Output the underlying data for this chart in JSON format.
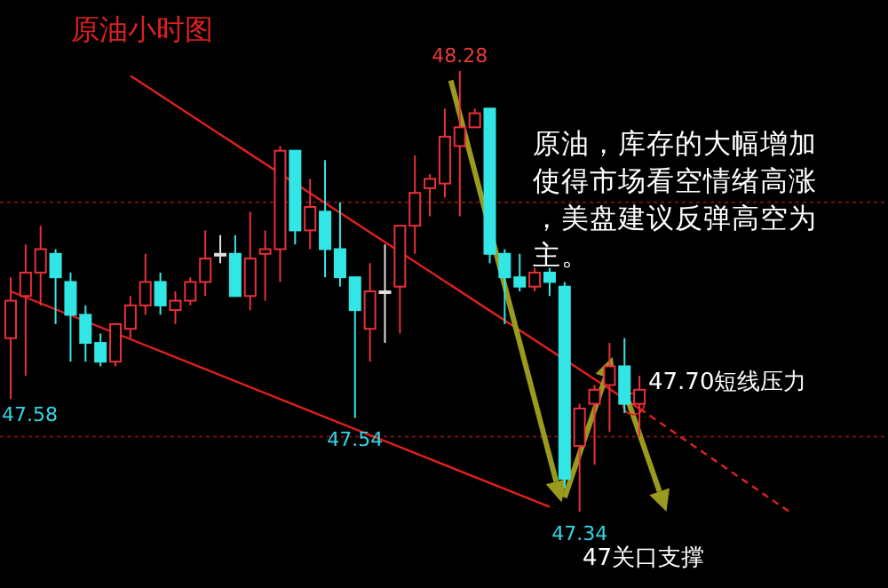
{
  "chart_data": {
    "type": "candlestick",
    "title": "原油小时图",
    "categories": [
      null,
      null,
      null,
      null,
      null,
      null,
      null,
      null,
      null,
      null,
      null,
      null,
      null,
      null,
      null,
      null,
      null,
      null,
      null,
      null,
      null,
      null,
      null,
      null,
      null,
      null,
      null,
      null,
      null,
      null,
      null,
      null,
      null,
      null,
      null,
      null,
      null,
      null,
      null,
      null,
      null,
      null,
      null,
      null,
      null,
      null,
      null,
      null,
      null,
      null,
      null,
      null,
      null
    ],
    "ohlc": [
      [
        47.71,
        47.84,
        47.58,
        47.79
      ],
      [
        47.8,
        47.91,
        47.63,
        47.85
      ],
      [
        47.85,
        47.95,
        47.78,
        47.9
      ],
      [
        47.89,
        47.9,
        47.74,
        47.84
      ],
      [
        47.83,
        47.85,
        47.66,
        47.76
      ],
      [
        47.76,
        47.78,
        47.66,
        47.7
      ],
      [
        47.7,
        47.72,
        47.65,
        47.66
      ],
      [
        47.66,
        47.74,
        47.65,
        47.74
      ],
      [
        47.73,
        47.8,
        47.71,
        47.78
      ],
      [
        47.78,
        47.89,
        47.76,
        47.83
      ],
      [
        47.83,
        47.85,
        47.76,
        47.78
      ],
      [
        47.77,
        47.81,
        47.74,
        47.79
      ],
      [
        47.79,
        47.84,
        47.78,
        47.83
      ],
      [
        47.83,
        47.94,
        47.8,
        47.88
      ],
      [
        47.89,
        47.93,
        47.87,
        47.89
      ],
      [
        47.89,
        47.93,
        47.8,
        47.8
      ],
      [
        47.8,
        47.98,
        47.77,
        47.88
      ],
      [
        47.89,
        47.94,
        47.79,
        47.9
      ],
      [
        47.9,
        48.12,
        47.83,
        48.11
      ],
      [
        48.11,
        48.11,
        47.91,
        47.94
      ],
      [
        47.94,
        48.05,
        47.9,
        47.99
      ],
      [
        47.98,
        48.09,
        47.84,
        47.9
      ],
      [
        47.9,
        48.0,
        47.82,
        47.84
      ],
      [
        47.84,
        47.84,
        47.54,
        47.77
      ],
      [
        47.73,
        47.87,
        47.66,
        47.81
      ],
      [
        47.81,
        47.91,
        47.7,
        47.81
      ],
      [
        47.82,
        47.95,
        47.72,
        47.95
      ],
      [
        47.95,
        48.1,
        47.89,
        48.02
      ],
      [
        48.03,
        48.06,
        47.97,
        48.05
      ],
      [
        48.04,
        48.2,
        48.01,
        48.14
      ],
      [
        48.12,
        48.28,
        47.97,
        48.16
      ],
      [
        48.16,
        48.2,
        48.16,
        48.19
      ],
      [
        48.2,
        48.2,
        47.87,
        47.89
      ],
      [
        47.89,
        47.9,
        47.74,
        47.84
      ],
      [
        47.84,
        47.89,
        47.81,
        47.82
      ],
      [
        47.82,
        47.86,
        47.81,
        47.85
      ],
      [
        47.85,
        47.86,
        47.8,
        47.83
      ],
      [
        47.82,
        47.83,
        47.39,
        47.41
      ],
      [
        47.48,
        47.57,
        47.34,
        47.56
      ],
      [
        47.57,
        47.61,
        47.44,
        47.6
      ],
      [
        47.61,
        47.7,
        47.51,
        47.65
      ],
      [
        47.65,
        47.71,
        47.55,
        47.57
      ],
      [
        47.57,
        47.63,
        47.5,
        47.6
      ],
      null,
      null,
      null,
      null,
      null,
      null,
      null,
      null,
      null,
      null
    ],
    "colors": [
      "#e8303a",
      "#e8303a",
      "#e8303a",
      "#33e6e6",
      "#33e6e6",
      "#33e6e6",
      "#33e6e6",
      "#e8303a",
      "#e8303a",
      "#e8303a",
      "#33e6e6",
      "#e8303a",
      "#e8303a",
      "#e8303a",
      "#e0e0e0",
      "#33e6e6",
      "#e8303a",
      "#e8303a",
      "#e8303a",
      "#33e6e6",
      "#e8303a",
      "#33e6e6",
      "#33e6e6",
      "#33e6e6",
      "#e8303a",
      "#e0e0e0",
      "#e8303a",
      "#e8303a",
      "#e8303a",
      "#e8303a",
      "#e8303a",
      "#e8303a",
      "#33e6e6",
      "#33e6e6",
      "#33e6e6",
      "#e8303a",
      "#33e6e6",
      "#33e6e6",
      "#e8303a",
      "#e8303a",
      "#e8303a",
      "#33e6e6",
      "#e8303a",
      null,
      null,
      null,
      null,
      null,
      null,
      null,
      null,
      null,
      null
    ],
    "series": [
      {
        "type": "line",
        "color": "#e02020",
        "line_style": "solid",
        "values": [
          47.81,
          null,
          null,
          null,
          null,
          null,
          null,
          null,
          null,
          null,
          null,
          null,
          null,
          null,
          null,
          null,
          null,
          null,
          null,
          null,
          null,
          null,
          null,
          null,
          null,
          null,
          null,
          null,
          null,
          null,
          null,
          null,
          null,
          null,
          null,
          null,
          47.35,
          null,
          null,
          null,
          null,
          null,
          null,
          null,
          null,
          null,
          null,
          null,
          null,
          null,
          null,
          null,
          null
        ]
      },
      {
        "type": "line",
        "color": "#e02020",
        "line_style": "solid",
        "values": [
          null,
          null,
          null,
          null,
          null,
          null,
          null,
          null,
          48.27,
          null,
          null,
          null,
          null,
          null,
          null,
          null,
          null,
          null,
          null,
          null,
          null,
          null,
          null,
          null,
          null,
          null,
          null,
          null,
          null,
          null,
          null,
          null,
          null,
          null,
          null,
          null,
          null,
          null,
          null,
          null,
          null,
          null,
          47.56,
          null,
          null,
          null,
          null,
          null,
          null,
          null,
          null,
          null,
          null
        ]
      },
      {
        "type": "line",
        "color": "#e02020",
        "line_style": "dashed",
        "values": [
          null,
          null,
          null,
          null,
          null,
          null,
          null,
          null,
          null,
          null,
          null,
          null,
          null,
          null,
          null,
          null,
          null,
          null,
          null,
          null,
          null,
          null,
          null,
          null,
          null,
          null,
          null,
          null,
          null,
          null,
          null,
          null,
          null,
          null,
          null,
          null,
          null,
          null,
          null,
          null,
          null,
          null,
          47.56,
          null,
          null,
          null,
          null,
          null,
          null,
          null,
          null,
          null,
          47.34
        ]
      }
    ],
    "ref_lines": [
      {
        "axis": "y",
        "value": 48.0,
        "color": "#7a1010",
        "line_style": "dotted"
      },
      {
        "axis": "y",
        "value": 47.5,
        "color": "#7a1010",
        "line_style": "dotted"
      }
    ],
    "annotations": [
      {
        "text": "48.28",
        "y": 48.28
      },
      "47.58",
      {
        "text": "47.54",
        "y": 47.54
      },
      {
        "text": "47.34",
        "y": 47.34
      },
      "原油，库存的大幅增加使得市场看空情绪高涨，美盘建议反弹高空为主。",
      "47.70短线压力",
      "47关口支撑"
    ]
  }
}
